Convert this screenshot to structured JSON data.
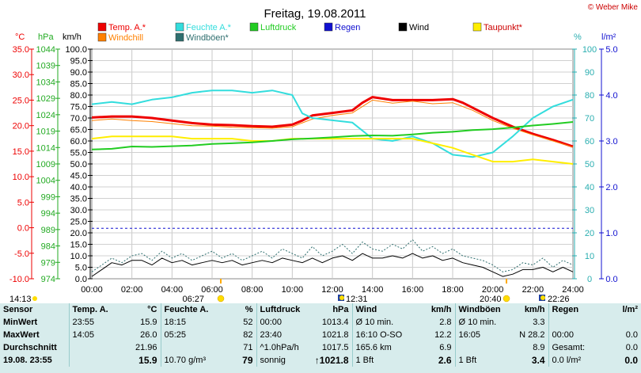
{
  "title": "Freitag, 19.08.2011",
  "copyright": "© Weber Mike",
  "colors": {
    "temp": "#ee0000",
    "windchill": "#ff8000",
    "humidity": "#33dddd",
    "gust": "#2f6f6f",
    "pressure": "#22cc22",
    "rain": "#1010d0",
    "wind": "#000000",
    "dewpoint": "#ffee00",
    "background": "#d7ecec"
  },
  "units": {
    "temp": "°C",
    "pressure": "hPa",
    "wind": "km/h",
    "humidity": "%",
    "rain": "l/m²"
  },
  "legend": [
    {
      "label": "Temp. A.*",
      "color": "#ee0000"
    },
    {
      "label": "Feuchte A.*",
      "color": "#33dddd"
    },
    {
      "label": "Luftdruck",
      "color": "#22cc22"
    },
    {
      "label": "Regen",
      "color": "#1010d0"
    },
    {
      "label": "Wind",
      "color": "#000000"
    },
    {
      "label": "Taupunkt*",
      "color": "#ffee00"
    },
    {
      "label": "Windchill",
      "color": "#ff8000"
    },
    {
      "label": "Windböen*",
      "color": "#2f6f6f"
    }
  ],
  "chart_data": {
    "type": "line",
    "x_ticks": [
      "00:00",
      "02:00",
      "04:00",
      "06:00",
      "08:00",
      "10:00",
      "12:00",
      "14:00",
      "16:00",
      "18:00",
      "20:00",
      "22:00",
      "24:00"
    ],
    "axes": {
      "temp": {
        "ticks": [
          "35.0",
          "30.0",
          "25.0",
          "20.0",
          "15.0",
          "10.0",
          "5.0",
          "0.0",
          "-5.0",
          "-10.0"
        ],
        "range": [
          -10,
          35
        ]
      },
      "pressure": {
        "ticks": [
          "1044",
          "1039",
          "1034",
          "1029",
          "1024",
          "1019",
          "1014",
          "1009",
          "1004",
          "999",
          "994",
          "989",
          "984",
          "979",
          "974"
        ],
        "range": [
          974,
          1044
        ]
      },
      "wind": {
        "ticks": [
          "100.0",
          "95.0",
          "90.0",
          "85.0",
          "80.0",
          "75.0",
          "70.0",
          "65.0",
          "60.0",
          "55.0",
          "50.0",
          "45.0",
          "40.0",
          "35.0",
          "30.0",
          "25.0",
          "20.0",
          "15.0",
          "10.0",
          "5.0",
          "0.0"
        ],
        "range": [
          0,
          100
        ]
      },
      "humidity": {
        "ticks": [
          "100",
          "90",
          "80",
          "70",
          "60",
          "50",
          "40",
          "30",
          "20",
          "10",
          "0"
        ],
        "range": [
          0,
          100
        ]
      },
      "rain": {
        "ticks": [
          "5.0",
          "4.0",
          "3.0",
          "2.0",
          "1.0",
          "0.0"
        ],
        "range": [
          0,
          5
        ]
      }
    },
    "markers": {
      "bottom_left": "14:13",
      "sunrise": "06:27",
      "moonrise": "12:31",
      "sunset": "20:40",
      "moonset": "22:26"
    },
    "series": [
      {
        "name": "Temp. A.*",
        "axis": "temp",
        "color": "#ee0000",
        "width": 3,
        "points": [
          [
            0,
            21.6
          ],
          [
            1,
            21.8
          ],
          [
            2,
            21.8
          ],
          [
            3,
            21.5
          ],
          [
            4,
            21.0
          ],
          [
            5,
            20.5
          ],
          [
            6,
            20.2
          ],
          [
            7,
            20.1
          ],
          [
            8,
            19.9
          ],
          [
            9,
            19.8
          ],
          [
            10,
            20.2
          ],
          [
            10.5,
            21.0
          ],
          [
            11,
            22.0
          ],
          [
            12,
            22.5
          ],
          [
            13,
            23.0
          ],
          [
            13.5,
            24.5
          ],
          [
            14,
            25.6
          ],
          [
            15,
            25.0
          ],
          [
            16,
            25.0
          ],
          [
            17,
            25.0
          ],
          [
            18,
            25.2
          ],
          [
            18.5,
            24.5
          ],
          [
            19,
            23.5
          ],
          [
            20,
            21.5
          ],
          [
            21,
            19.8
          ],
          [
            22,
            18.4
          ],
          [
            23,
            17.2
          ],
          [
            24,
            15.9
          ]
        ]
      },
      {
        "name": "Windchill",
        "axis": "temp",
        "color": "#ff8000",
        "width": 1,
        "points": [
          [
            0,
            21.0
          ],
          [
            1,
            21.3
          ],
          [
            2,
            21.0
          ],
          [
            3,
            20.8
          ],
          [
            4,
            20.4
          ],
          [
            5,
            20.0
          ],
          [
            6,
            19.9
          ],
          [
            7,
            19.7
          ],
          [
            8,
            19.6
          ],
          [
            9,
            19.5
          ],
          [
            10,
            19.8
          ],
          [
            11,
            21.3
          ],
          [
            12,
            22.0
          ],
          [
            13,
            22.5
          ],
          [
            14,
            25.0
          ],
          [
            15,
            24.4
          ],
          [
            16,
            24.8
          ],
          [
            17,
            24.3
          ],
          [
            18,
            24.5
          ],
          [
            19,
            23.0
          ],
          [
            20,
            21.0
          ],
          [
            21,
            19.5
          ],
          [
            22,
            18.2
          ],
          [
            23,
            17.0
          ],
          [
            24,
            15.8
          ]
        ]
      },
      {
        "name": "Feuchte A.*",
        "axis": "humidity",
        "color": "#33dddd",
        "width": 2,
        "points": [
          [
            0,
            76
          ],
          [
            1,
            77
          ],
          [
            2,
            76
          ],
          [
            3,
            78
          ],
          [
            4,
            79
          ],
          [
            5,
            81
          ],
          [
            6,
            82
          ],
          [
            7,
            82
          ],
          [
            8,
            81
          ],
          [
            9,
            82
          ],
          [
            10,
            80
          ],
          [
            10.5,
            72
          ],
          [
            11,
            70
          ],
          [
            12,
            69
          ],
          [
            13,
            68
          ],
          [
            14,
            61
          ],
          [
            15,
            60
          ],
          [
            16,
            62
          ],
          [
            17,
            59
          ],
          [
            18,
            54
          ],
          [
            19,
            53
          ],
          [
            20,
            55
          ],
          [
            21,
            62
          ],
          [
            22,
            70
          ],
          [
            23,
            75
          ],
          [
            24,
            78
          ]
        ]
      },
      {
        "name": "Taupunkt*",
        "axis": "humidity",
        "color": "#ffee00",
        "width": 2,
        "points": [
          [
            0,
            61
          ],
          [
            1,
            62
          ],
          [
            2,
            62
          ],
          [
            3,
            62
          ],
          [
            4,
            62
          ],
          [
            5,
            61
          ],
          [
            6,
            61
          ],
          [
            7,
            61
          ],
          [
            8,
            60
          ],
          [
            9,
            60
          ],
          [
            10,
            61
          ],
          [
            11,
            61
          ],
          [
            12,
            61
          ],
          [
            13,
            61
          ],
          [
            14,
            61
          ],
          [
            15,
            61
          ],
          [
            16,
            61
          ],
          [
            17,
            59
          ],
          [
            18,
            57
          ],
          [
            19,
            54
          ],
          [
            20,
            51
          ],
          [
            21,
            51
          ],
          [
            22,
            52
          ],
          [
            23,
            51
          ],
          [
            24,
            50
          ]
        ]
      },
      {
        "name": "Luftdruck",
        "axis": "pressure",
        "color": "#22cc22",
        "width": 2,
        "points": [
          [
            0,
            1013.4
          ],
          [
            1,
            1013.6
          ],
          [
            2,
            1014.3
          ],
          [
            3,
            1014.2
          ],
          [
            4,
            1014.4
          ],
          [
            5,
            1014.6
          ],
          [
            6,
            1015.1
          ],
          [
            7,
            1015.3
          ],
          [
            8,
            1015.6
          ],
          [
            9,
            1016.0
          ],
          [
            10,
            1016.5
          ],
          [
            11,
            1016.8
          ],
          [
            12,
            1017.1
          ],
          [
            13,
            1017.5
          ],
          [
            14,
            1017.7
          ],
          [
            15,
            1017.6
          ],
          [
            16,
            1018.0
          ],
          [
            17,
            1018.5
          ],
          [
            18,
            1018.8
          ],
          [
            19,
            1019.3
          ],
          [
            20,
            1019.6
          ],
          [
            21,
            1020.1
          ],
          [
            22,
            1020.7
          ],
          [
            23,
            1021.2
          ],
          [
            24,
            1021.8
          ]
        ]
      },
      {
        "name": "Windböen*",
        "axis": "wind",
        "color": "#2f6f6f",
        "width": 1,
        "dashed": true,
        "points": [
          [
            0,
            3
          ],
          [
            0.5,
            6
          ],
          [
            1,
            9
          ],
          [
            1.5,
            7
          ],
          [
            2,
            10
          ],
          [
            2.5,
            11
          ],
          [
            3,
            8
          ],
          [
            3.5,
            12
          ],
          [
            4,
            9
          ],
          [
            4.5,
            11
          ],
          [
            5,
            8
          ],
          [
            5.5,
            10
          ],
          [
            6,
            12
          ],
          [
            6.5,
            9
          ],
          [
            7,
            11
          ],
          [
            7.5,
            8
          ],
          [
            8,
            10
          ],
          [
            8.5,
            12
          ],
          [
            9,
            9
          ],
          [
            9.5,
            13
          ],
          [
            10,
            11
          ],
          [
            10.5,
            9
          ],
          [
            11,
            14
          ],
          [
            11.5,
            10
          ],
          [
            12,
            12
          ],
          [
            12.5,
            15
          ],
          [
            13,
            11
          ],
          [
            13.5,
            16
          ],
          [
            14,
            13
          ],
          [
            14.5,
            12
          ],
          [
            15,
            15
          ],
          [
            15.5,
            13
          ],
          [
            16,
            17
          ],
          [
            16.5,
            12
          ],
          [
            17,
            14
          ],
          [
            17.5,
            11
          ],
          [
            18,
            13
          ],
          [
            18.5,
            10
          ],
          [
            19,
            9
          ],
          [
            19.5,
            8
          ],
          [
            20,
            6
          ],
          [
            20.5,
            3
          ],
          [
            21,
            4
          ],
          [
            21.5,
            7
          ],
          [
            22,
            6
          ],
          [
            22.5,
            9
          ],
          [
            23,
            5
          ],
          [
            23.5,
            8
          ],
          [
            24,
            6
          ]
        ]
      },
      {
        "name": "Wind",
        "axis": "wind",
        "color": "#000000",
        "width": 1,
        "points": [
          [
            0,
            1
          ],
          [
            0.5,
            4
          ],
          [
            1,
            7
          ],
          [
            1.5,
            6
          ],
          [
            2,
            8
          ],
          [
            2.5,
            8
          ],
          [
            3,
            6
          ],
          [
            3.5,
            9
          ],
          [
            4,
            7
          ],
          [
            4.5,
            8
          ],
          [
            5,
            6
          ],
          [
            5.5,
            7
          ],
          [
            6,
            8
          ],
          [
            6.5,
            7
          ],
          [
            7,
            8
          ],
          [
            7.5,
            6
          ],
          [
            8,
            7
          ],
          [
            8.5,
            8
          ],
          [
            9,
            7
          ],
          [
            9.5,
            9
          ],
          [
            10,
            8
          ],
          [
            10.5,
            7
          ],
          [
            11,
            9
          ],
          [
            11.5,
            7
          ],
          [
            12,
            9
          ],
          [
            12.5,
            10
          ],
          [
            13,
            8
          ],
          [
            13.5,
            11
          ],
          [
            14,
            9
          ],
          [
            14.5,
            9
          ],
          [
            15,
            10
          ],
          [
            15.5,
            9
          ],
          [
            16,
            11
          ],
          [
            16.5,
            9
          ],
          [
            17,
            10
          ],
          [
            17.5,
            8
          ],
          [
            18,
            9
          ],
          [
            18.5,
            7
          ],
          [
            19,
            6
          ],
          [
            19.5,
            5
          ],
          [
            20,
            3
          ],
          [
            20.5,
            1
          ],
          [
            21,
            2
          ],
          [
            21.5,
            4
          ],
          [
            22,
            4
          ],
          [
            22.5,
            5
          ],
          [
            23,
            3
          ],
          [
            23.5,
            5
          ],
          [
            24,
            3
          ]
        ]
      }
    ],
    "rain_level_dashed": 1.1
  },
  "stats": {
    "rows": [
      [
        "Sensor",
        "Temp. A.",
        "°C",
        "Feuchte A.",
        "%",
        "Luftdruck",
        "hPa",
        "Wind",
        "km/h",
        "Windböen",
        "km/h",
        "Regen",
        "l/m²"
      ],
      [
        "MinWert",
        "23:55",
        "15.9",
        "18:15",
        "52",
        "00:00",
        "1013.4",
        "Ø 10 min.",
        "2.8",
        "Ø 10 min.",
        "3.3",
        "",
        ""
      ],
      [
        "MaxWert",
        "14:05",
        "26.0",
        "05:25",
        "82",
        "23:40",
        "1021.8",
        "16:10   O-SO",
        "12.2",
        "16:05",
        "N 28.2",
        "00:00",
        "0.0"
      ],
      [
        "Durchschnitt",
        "",
        "21.96",
        "",
        "71",
        "^1.0hPa/h",
        "1017.5",
        "165.6 km",
        "6.9",
        "",
        "8.9",
        "Gesamt:",
        "0.0"
      ],
      [
        "19.08. 23:55",
        "",
        "15.9",
        "10.70 g/m³",
        "79",
        "sonnig",
        "↑1021.8",
        "1 Bft",
        "2.6",
        "1 Bft",
        "3.4",
        "0.0 l/m²",
        "0.0"
      ]
    ]
  }
}
